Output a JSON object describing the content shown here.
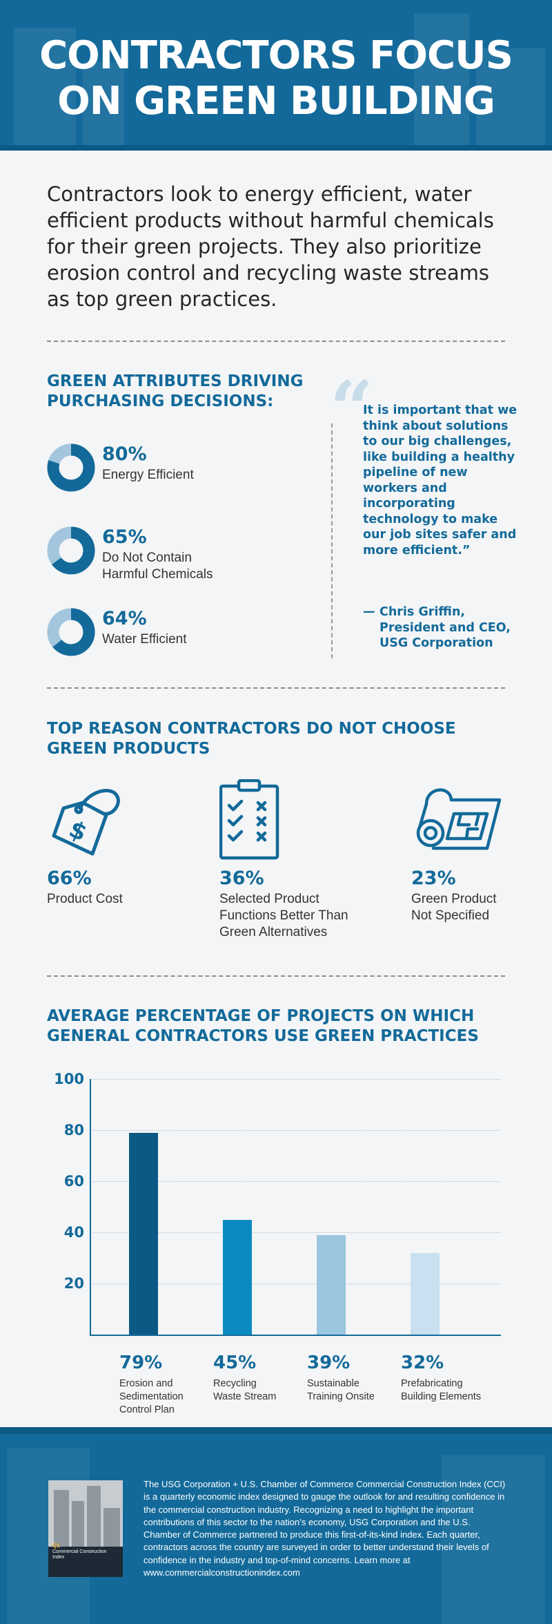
{
  "header": {
    "title_line1": "CONTRACTORS FOCUS",
    "title_line2": "ON GREEN BUILDING",
    "bg_color": "#136a9a"
  },
  "intro": {
    "text": "Contractors look to energy efficient, water efficient products without harmful chemicals for their green projects. They also prioritize erosion control and recycling waste streams as top green practices."
  },
  "attributes": {
    "title_line1": "GREEN ATTRIBUTES DRIVING",
    "title_line2": "PURCHASING DECISIONS:",
    "items": [
      {
        "percent_text": "80%",
        "value": 80,
        "label": "Energy Efficient"
      },
      {
        "percent_text": "65%",
        "value": 65,
        "label": "Do Not Contain Harmful Chemicals"
      },
      {
        "percent_text": "64%",
        "value": 64,
        "label": "Water Efficient"
      }
    ],
    "colors": {
      "filled": "#136a9a",
      "remaining": "#a3c6de"
    }
  },
  "quote": {
    "text": "It is important that we think about solutions to our big challenges, like building a healthy pipeline of new workers and incorporating technology to make our job sites safer and more efficient.”",
    "author_dash": "—",
    "author_name": "Chris Griffin,",
    "author_title": "President and CEO,",
    "author_org": "USG Corporation"
  },
  "reasons": {
    "title_line1": "TOP REASON CONTRACTORS DO NOT CHOOSE",
    "title_line2": "GREEN PRODUCTS",
    "items": [
      {
        "icon": "price-tag-icon",
        "percent_text": "66%",
        "label": "Product Cost"
      },
      {
        "icon": "clipboard-checklist-icon",
        "percent_text": "36%",
        "label": "Selected Product Functions Better Than Green Alternatives"
      },
      {
        "icon": "blueprint-roll-icon",
        "percent_text": "23%",
        "label": "Green Product Not Specified"
      }
    ]
  },
  "practices": {
    "title_line1": "AVERAGE PERCENTAGE OF PROJECTS ON WHICH",
    "title_line2": "GENERAL CONTRACTORS USE GREEN PRACTICES"
  },
  "chart_data": {
    "type": "bar",
    "title": "AVERAGE PERCENTAGE OF PROJECTS ON WHICH GENERAL CONTRACTORS USE GREEN PRACTICES",
    "categories": [
      "Erosion and Sedimentation Control Plan",
      "Recycling Waste Stream",
      "Sustainable Training Onsite",
      "Prefabricating Building Elements"
    ],
    "values": [
      79,
      45,
      39,
      32
    ],
    "value_labels": [
      "79%",
      "45%",
      "39%",
      "32%"
    ],
    "label_lines": [
      [
        "Erosion and",
        "Sedimentation",
        "Control Plan"
      ],
      [
        "Recycling",
        "Waste Stream"
      ],
      [
        "Sustainable",
        "Training Onsite"
      ],
      [
        "Prefabricating",
        "Building Elements"
      ]
    ],
    "yticks": [
      20,
      40,
      60,
      80,
      100
    ],
    "ylim": [
      0,
      100
    ],
    "grid": true,
    "bar_colors": [
      "#0b5a86",
      "#0b8ac2",
      "#9cc6e0",
      "#c8e0f0"
    ]
  },
  "footer": {
    "text": "The USG Corporation + U.S. Chamber of Commerce Commercial Construction Index (CCI) is a quarterly economic index designed to gauge the outlook for and resulting confidence in the commercial construction industry. Recognizing a need to highlight the important contributions of this sector to the nation’s economy, USG Corporation and the U.S. Chamber of Commerce partnered to produce this first-of-its-kind index. Each quarter, contractors across the country are surveyed in order to better understand their levels of confidence in the industry and top-of-mind concerns. Learn more at www.commercialconstructionindex.com",
    "report_number": "Q1",
    "report_title": "Commercial Construction Index"
  }
}
